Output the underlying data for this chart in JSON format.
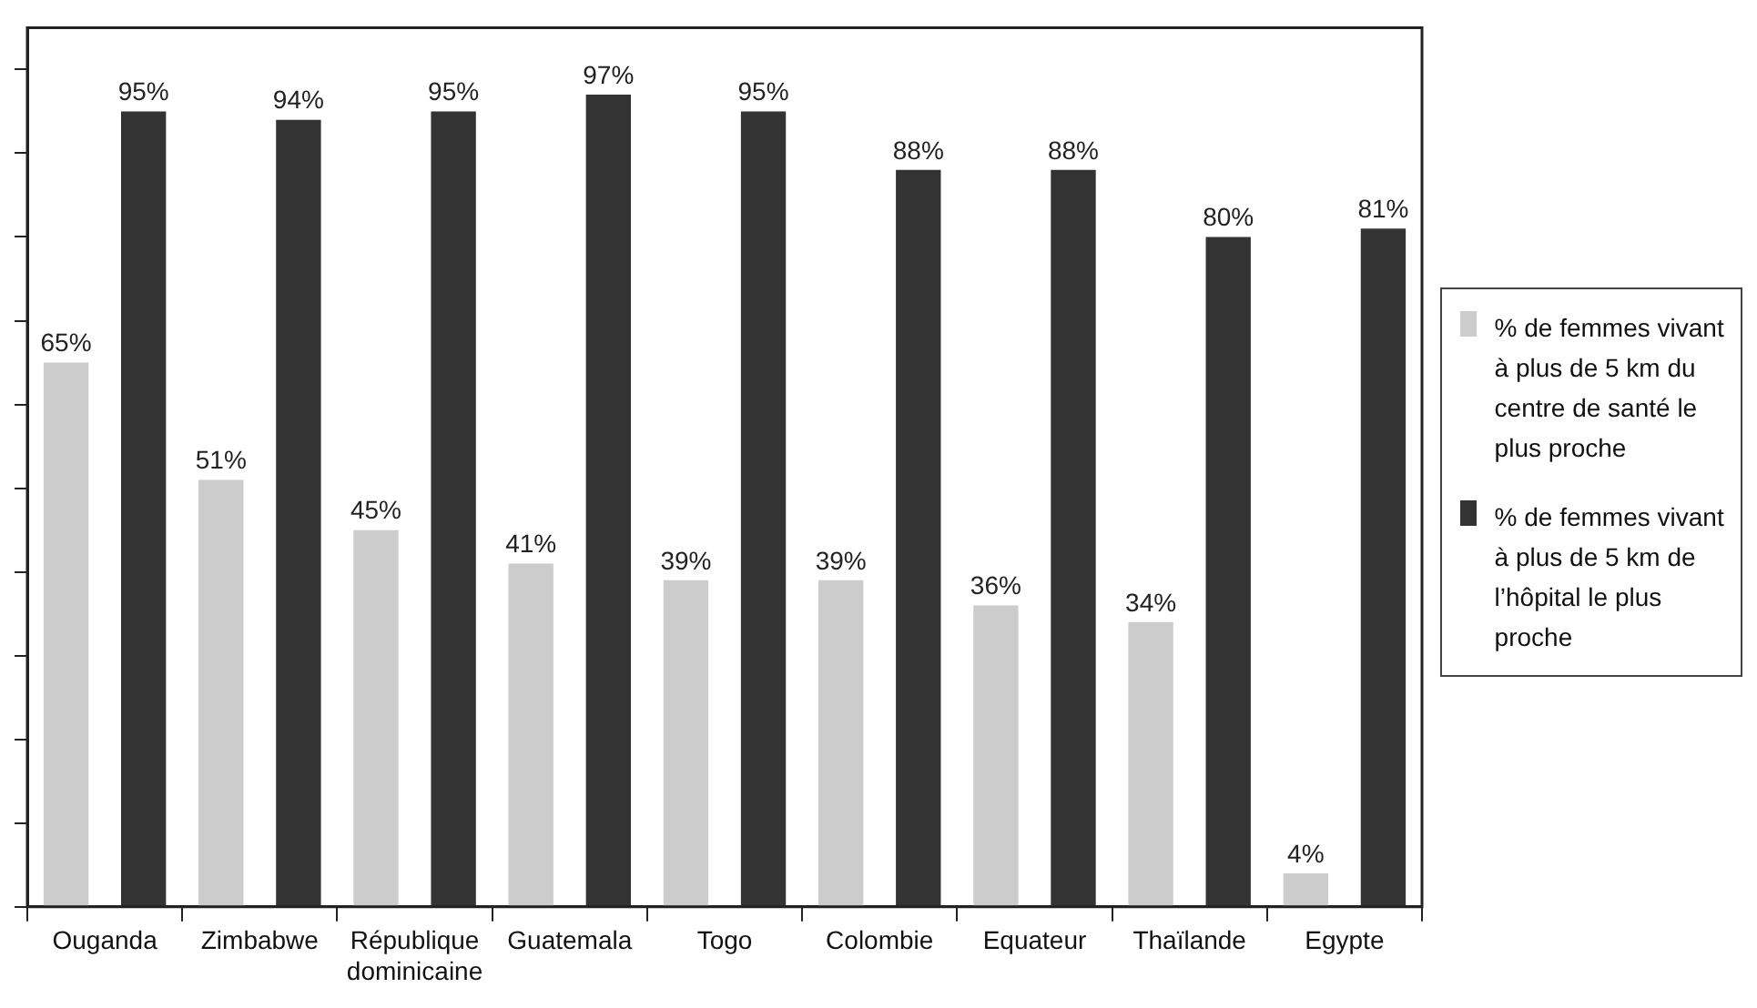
{
  "chart_data": {
    "type": "bar",
    "categories": [
      "Ouganda",
      "Zimbabwe",
      "République dominicaine",
      "Guatemala",
      "Togo",
      "Colombie",
      "Equateur",
      "Thaïlande",
      "Egypte"
    ],
    "series": [
      {
        "name": "% de femmes vivant à plus de 5 km du centre de santé le plus proche",
        "color": "#cccccc",
        "values": [
          65,
          51,
          45,
          41,
          39,
          39,
          36,
          34,
          4
        ],
        "value_labels": [
          "65%",
          "51%",
          "45%",
          "41%",
          "39%",
          "39%",
          "36%",
          "34%",
          "4%"
        ]
      },
      {
        "name": "% de femmes vivant à plus de 5 km de l’hôpital le plus proche",
        "color": "#333333",
        "values": [
          95,
          94,
          95,
          97,
          95,
          88,
          88,
          80,
          81
        ],
        "value_labels": [
          "95%",
          "94%",
          "95%",
          "97%",
          "95%",
          "88%",
          "88%",
          "80%",
          "81%"
        ]
      }
    ],
    "ylim": [
      0,
      105
    ],
    "yticks": [
      {
        "value": 0,
        "label": null
      },
      {
        "value": 10,
        "label": null
      },
      {
        "value": 20,
        "label": null
      },
      {
        "value": 30,
        "label": null
      },
      {
        "value": 40,
        "label": null
      },
      {
        "value": 50,
        "label": null
      },
      {
        "value": 60,
        "label": null
      },
      {
        "value": 70,
        "label": null
      },
      {
        "value": 80,
        "label": null
      },
      {
        "value": 90,
        "label": null
      },
      {
        "value": 100,
        "label": null
      }
    ],
    "tick_labels": "x",
    "grid": false,
    "legend": "right"
  }
}
